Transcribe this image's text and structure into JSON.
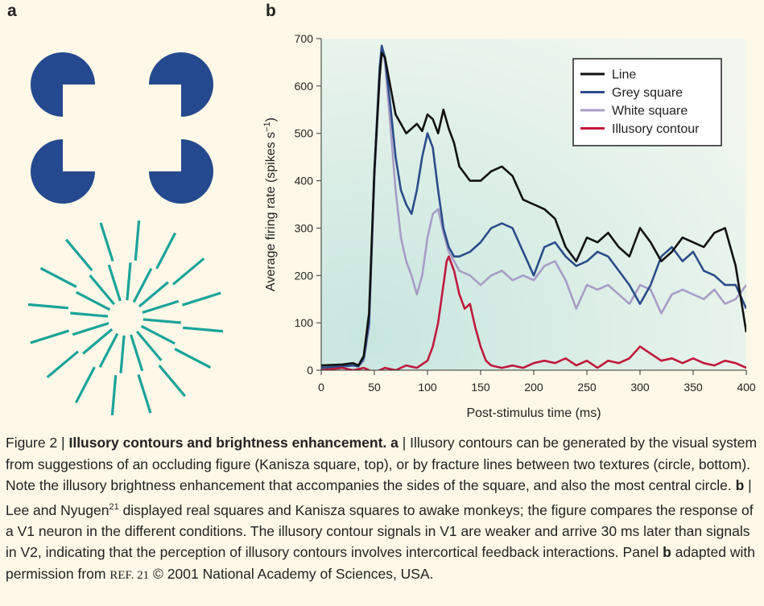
{
  "panel_labels": {
    "a": "a",
    "b": "b"
  },
  "colors": {
    "background": "#fdf8e7",
    "kanizsa": "#24498e",
    "lines": "#1aa39a",
    "line_series": "#111111",
    "grey_square": "#2a4d8a",
    "white_square": "#a89cc6",
    "illusory_contour": "#c0193a"
  },
  "chart_data": {
    "type": "line",
    "xlabel": "Post-stimulus time (ms)",
    "ylabel": "Average firing rate (spikes s⁻¹)",
    "ylabel_prefix": "Average firing rate (spikes s",
    "ylabel_sup": "−1",
    "ylabel_suffix": ")",
    "xlim": [
      0,
      400
    ],
    "ylim": [
      0,
      700
    ],
    "xticks": [
      "0",
      "50",
      "100",
      "150",
      "200",
      "250",
      "300",
      "350",
      "400"
    ],
    "yticks": [
      "0",
      "100",
      "200",
      "300",
      "400",
      "500",
      "600",
      "700"
    ],
    "legend_position": "top-right",
    "series": [
      {
        "name": "Line",
        "color": "#111111",
        "x": [
          0,
          20,
          30,
          35,
          40,
          45,
          50,
          55,
          57,
          60,
          65,
          70,
          75,
          80,
          85,
          90,
          95,
          100,
          105,
          110,
          115,
          120,
          125,
          130,
          140,
          150,
          160,
          170,
          180,
          190,
          200,
          210,
          220,
          230,
          240,
          250,
          260,
          270,
          280,
          290,
          300,
          310,
          320,
          330,
          340,
          350,
          360,
          370,
          380,
          390,
          400
        ],
        "y": [
          10,
          12,
          15,
          10,
          30,
          120,
          420,
          620,
          670,
          660,
          600,
          540,
          520,
          500,
          510,
          520,
          505,
          540,
          530,
          500,
          550,
          510,
          480,
          430,
          400,
          400,
          420,
          430,
          410,
          360,
          350,
          340,
          320,
          260,
          230,
          280,
          270,
          290,
          260,
          240,
          300,
          270,
          230,
          250,
          280,
          270,
          260,
          290,
          300,
          220,
          80
        ]
      },
      {
        "name": "Grey square",
        "color": "#2a4d8a",
        "x": [
          0,
          20,
          30,
          35,
          40,
          45,
          50,
          55,
          57,
          60,
          65,
          70,
          75,
          80,
          85,
          90,
          95,
          100,
          105,
          110,
          115,
          120,
          125,
          130,
          140,
          150,
          160,
          170,
          180,
          190,
          200,
          210,
          220,
          230,
          240,
          250,
          260,
          270,
          280,
          290,
          300,
          310,
          320,
          330,
          340,
          350,
          360,
          370,
          380,
          390,
          400
        ],
        "y": [
          5,
          8,
          10,
          8,
          25,
          100,
          420,
          640,
          685,
          660,
          560,
          450,
          380,
          350,
          330,
          380,
          450,
          500,
          470,
          380,
          300,
          260,
          240,
          240,
          250,
          270,
          300,
          310,
          300,
          250,
          200,
          260,
          270,
          240,
          220,
          230,
          250,
          240,
          210,
          180,
          140,
          180,
          240,
          260,
          230,
          250,
          210,
          200,
          180,
          180,
          130
        ]
      },
      {
        "name": "White square",
        "color": "#a89cc6",
        "x": [
          0,
          20,
          30,
          35,
          40,
          45,
          50,
          55,
          57,
          60,
          65,
          70,
          75,
          80,
          85,
          90,
          95,
          100,
          105,
          110,
          115,
          120,
          125,
          130,
          140,
          150,
          160,
          170,
          180,
          190,
          200,
          210,
          220,
          230,
          240,
          250,
          260,
          270,
          280,
          290,
          300,
          310,
          320,
          330,
          340,
          350,
          360,
          370,
          380,
          390,
          400
        ],
        "y": [
          5,
          8,
          10,
          8,
          20,
          90,
          400,
          620,
          680,
          650,
          520,
          380,
          280,
          230,
          200,
          160,
          200,
          280,
          330,
          340,
          290,
          250,
          230,
          210,
          200,
          180,
          200,
          210,
          190,
          200,
          190,
          220,
          230,
          190,
          130,
          180,
          170,
          180,
          160,
          140,
          180,
          170,
          120,
          160,
          170,
          160,
          150,
          170,
          140,
          150,
          180
        ]
      },
      {
        "name": "Illusory contour",
        "color": "#c0193a",
        "x": [
          0,
          20,
          30,
          40,
          50,
          60,
          70,
          80,
          90,
          100,
          105,
          110,
          115,
          118,
          120,
          125,
          130,
          135,
          140,
          145,
          150,
          155,
          160,
          170,
          180,
          190,
          200,
          210,
          220,
          230,
          240,
          250,
          260,
          270,
          280,
          290,
          300,
          310,
          320,
          330,
          340,
          350,
          360,
          370,
          380,
          390,
          400
        ],
        "y": [
          0,
          5,
          0,
          5,
          -5,
          5,
          0,
          10,
          5,
          20,
          50,
          100,
          180,
          230,
          240,
          210,
          160,
          130,
          140,
          90,
          50,
          20,
          10,
          5,
          10,
          5,
          15,
          20,
          15,
          25,
          10,
          20,
          5,
          20,
          15,
          25,
          50,
          35,
          20,
          25,
          15,
          25,
          15,
          10,
          20,
          15,
          5
        ]
      }
    ]
  },
  "caption": {
    "prefix": "Figure 2 | ",
    "title": "Illusory contours and brightness enhancement.",
    "a_label": "a",
    "part_a": " | Illusory contours can be generated by the visual system from suggestions of an occluding figure (Kanisza square, top), or by fracture lines between two textures (circle, bottom). Note the illusory brightness enhancement that accompanies the sides of the square, and also the most central circle. ",
    "b_label": "b",
    "part_b1": " | Lee and Nyugen",
    "ref_sup": "21",
    "part_b2": " displayed real squares and Kanisza squares to awake monkeys; the figure compares the response of a V1 neuron in the different conditions. The illusory contour signals in V1 are weaker and arrive 30 ms later than signals in V2, indicating that the perception of illusory contours involves intercortical feedback interactions. Panel ",
    "b_label2": "b",
    "part_b3": " adapted with permission from ",
    "ref_text": "REF. 21",
    "part_b4": " © 2001 National Academy of Sciences, USA."
  }
}
